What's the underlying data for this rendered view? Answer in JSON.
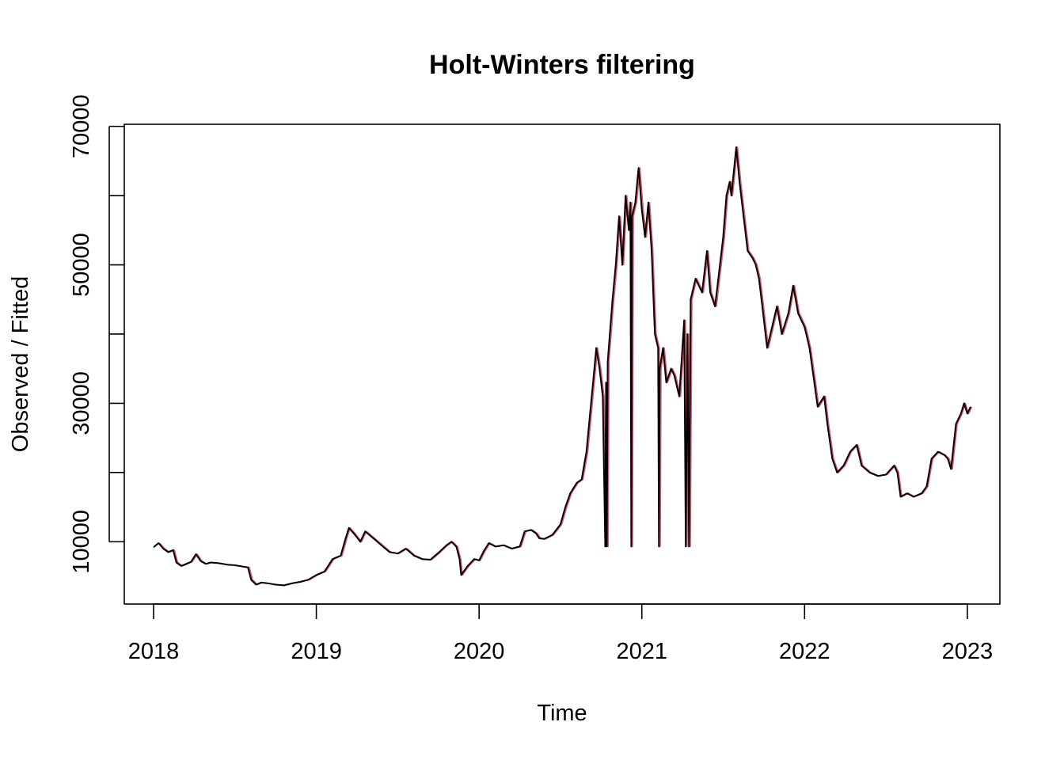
{
  "chart_data": {
    "type": "line",
    "title": "Holt-Winters filtering",
    "xlabel": "Time",
    "ylabel": "Observed / Fitted",
    "xlim": [
      2017.82,
      2023.2
    ],
    "ylim": [
      1000,
      70300
    ],
    "x_ticks": [
      2018,
      2019,
      2020,
      2021,
      2022,
      2023
    ],
    "x_tick_labels": [
      "2018",
      "2019",
      "2020",
      "2021",
      "2022",
      "2023"
    ],
    "y_ticks": [
      10000,
      20000,
      30000,
      40000,
      50000,
      60000,
      70000
    ],
    "y_tick_labels": [
      "10000",
      "",
      "30000",
      "",
      "50000",
      "",
      "70000"
    ],
    "grid": false,
    "series": [
      {
        "role": "observed",
        "color": "#000000",
        "points": [
          [
            2018.0,
            9200
          ],
          [
            2018.03,
            9800
          ],
          [
            2018.06,
            9000
          ],
          [
            2018.09,
            8500
          ],
          [
            2018.12,
            8800
          ],
          [
            2018.14,
            7000
          ],
          [
            2018.17,
            6500
          ],
          [
            2018.2,
            6800
          ],
          [
            2018.23,
            7100
          ],
          [
            2018.26,
            8200
          ],
          [
            2018.29,
            7200
          ],
          [
            2018.32,
            6800
          ],
          [
            2018.35,
            7000
          ],
          [
            2018.4,
            6900
          ],
          [
            2018.45,
            6700
          ],
          [
            2018.5,
            6600
          ],
          [
            2018.55,
            6400
          ],
          [
            2018.58,
            6300
          ],
          [
            2018.6,
            4500
          ],
          [
            2018.63,
            3800
          ],
          [
            2018.66,
            4100
          ],
          [
            2018.7,
            4000
          ],
          [
            2018.75,
            3800
          ],
          [
            2018.8,
            3700
          ],
          [
            2018.85,
            4000
          ],
          [
            2018.9,
            4200
          ],
          [
            2018.95,
            4500
          ],
          [
            2019.0,
            5200
          ],
          [
            2019.05,
            5700
          ],
          [
            2019.1,
            7500
          ],
          [
            2019.15,
            8000
          ],
          [
            2019.18,
            10500
          ],
          [
            2019.2,
            12000
          ],
          [
            2019.23,
            11200
          ],
          [
            2019.27,
            10000
          ],
          [
            2019.3,
            11500
          ],
          [
            2019.35,
            10500
          ],
          [
            2019.4,
            9500
          ],
          [
            2019.45,
            8500
          ],
          [
            2019.5,
            8300
          ],
          [
            2019.55,
            9000
          ],
          [
            2019.6,
            8000
          ],
          [
            2019.65,
            7500
          ],
          [
            2019.7,
            7400
          ],
          [
            2019.75,
            8400
          ],
          [
            2019.8,
            9500
          ],
          [
            2019.83,
            10000
          ],
          [
            2019.86,
            9300
          ],
          [
            2019.88,
            7500
          ],
          [
            2019.89,
            5200
          ],
          [
            2019.93,
            6500
          ],
          [
            2019.97,
            7500
          ],
          [
            2020.0,
            7300
          ],
          [
            2020.03,
            8700
          ],
          [
            2020.06,
            9800
          ],
          [
            2020.1,
            9300
          ],
          [
            2020.15,
            9500
          ],
          [
            2020.2,
            9000
          ],
          [
            2020.25,
            9300
          ],
          [
            2020.28,
            11500
          ],
          [
            2020.32,
            11700
          ],
          [
            2020.35,
            11200
          ],
          [
            2020.37,
            10500
          ],
          [
            2020.4,
            10400
          ],
          [
            2020.45,
            11000
          ],
          [
            2020.5,
            12500
          ],
          [
            2020.53,
            15000
          ],
          [
            2020.56,
            17000
          ],
          [
            2020.6,
            18500
          ],
          [
            2020.63,
            19000
          ],
          [
            2020.66,
            23000
          ],
          [
            2020.68,
            28000
          ],
          [
            2020.7,
            33000
          ],
          [
            2020.72,
            38000
          ],
          [
            2020.74,
            35000
          ],
          [
            2020.76,
            31000
          ],
          [
            2020.775,
            9300
          ],
          [
            2020.78,
            33000
          ],
          [
            2020.785,
            9300
          ],
          [
            2020.79,
            36000
          ],
          [
            2020.82,
            45000
          ],
          [
            2020.84,
            50000
          ],
          [
            2020.86,
            57000
          ],
          [
            2020.88,
            50000
          ],
          [
            2020.9,
            60000
          ],
          [
            2020.92,
            55000
          ],
          [
            2020.93,
            59000
          ],
          [
            2020.935,
            9300
          ],
          [
            2020.94,
            57000
          ],
          [
            2020.96,
            59000
          ],
          [
            2020.98,
            64000
          ],
          [
            2021.0,
            58000
          ],
          [
            2021.02,
            54000
          ],
          [
            2021.04,
            59000
          ],
          [
            2021.06,
            52000
          ],
          [
            2021.08,
            40000
          ],
          [
            2021.1,
            38000
          ],
          [
            2021.105,
            9300
          ],
          [
            2021.11,
            35000
          ],
          [
            2021.13,
            38000
          ],
          [
            2021.15,
            33000
          ],
          [
            2021.18,
            35000
          ],
          [
            2021.2,
            34000
          ],
          [
            2021.23,
            31000
          ],
          [
            2021.26,
            42000
          ],
          [
            2021.27,
            9300
          ],
          [
            2021.28,
            40000
          ],
          [
            2021.29,
            9300
          ],
          [
            2021.3,
            45000
          ],
          [
            2021.33,
            48000
          ],
          [
            2021.37,
            46000
          ],
          [
            2021.4,
            52000
          ],
          [
            2021.42,
            46000
          ],
          [
            2021.45,
            44000
          ],
          [
            2021.5,
            54000
          ],
          [
            2021.52,
            60000
          ],
          [
            2021.54,
            62000
          ],
          [
            2021.55,
            60000
          ],
          [
            2021.58,
            67000
          ],
          [
            2021.6,
            62000
          ],
          [
            2021.62,
            58000
          ],
          [
            2021.65,
            52000
          ],
          [
            2021.68,
            51000
          ],
          [
            2021.7,
            50000
          ],
          [
            2021.72,
            48000
          ],
          [
            2021.74,
            44000
          ],
          [
            2021.77,
            38000
          ],
          [
            2021.8,
            41000
          ],
          [
            2021.83,
            44000
          ],
          [
            2021.86,
            40000
          ],
          [
            2021.9,
            43000
          ],
          [
            2021.93,
            47000
          ],
          [
            2021.96,
            43000
          ],
          [
            2022.0,
            41000
          ],
          [
            2022.03,
            38000
          ],
          [
            2022.06,
            33000
          ],
          [
            2022.08,
            29500
          ],
          [
            2022.12,
            31000
          ],
          [
            2022.14,
            27000
          ],
          [
            2022.17,
            22000
          ],
          [
            2022.2,
            20000
          ],
          [
            2022.24,
            21000
          ],
          [
            2022.28,
            23000
          ],
          [
            2022.32,
            24000
          ],
          [
            2022.35,
            21000
          ],
          [
            2022.4,
            20000
          ],
          [
            2022.45,
            19500
          ],
          [
            2022.5,
            19700
          ],
          [
            2022.55,
            21000
          ],
          [
            2022.57,
            20000
          ],
          [
            2022.59,
            16500
          ],
          [
            2022.63,
            17000
          ],
          [
            2022.67,
            16500
          ],
          [
            2022.72,
            17000
          ],
          [
            2022.75,
            18000
          ],
          [
            2022.78,
            22000
          ],
          [
            2022.82,
            23000
          ],
          [
            2022.86,
            22500
          ],
          [
            2022.88,
            22000
          ],
          [
            2022.9,
            20500
          ],
          [
            2022.93,
            27000
          ],
          [
            2022.96,
            28500
          ],
          [
            2022.98,
            30000
          ],
          [
            2023.0,
            28500
          ],
          [
            2023.02,
            29500
          ]
        ]
      },
      {
        "role": "fitted",
        "color": "#DF536B",
        "lag_years": 0.008
      }
    ]
  }
}
